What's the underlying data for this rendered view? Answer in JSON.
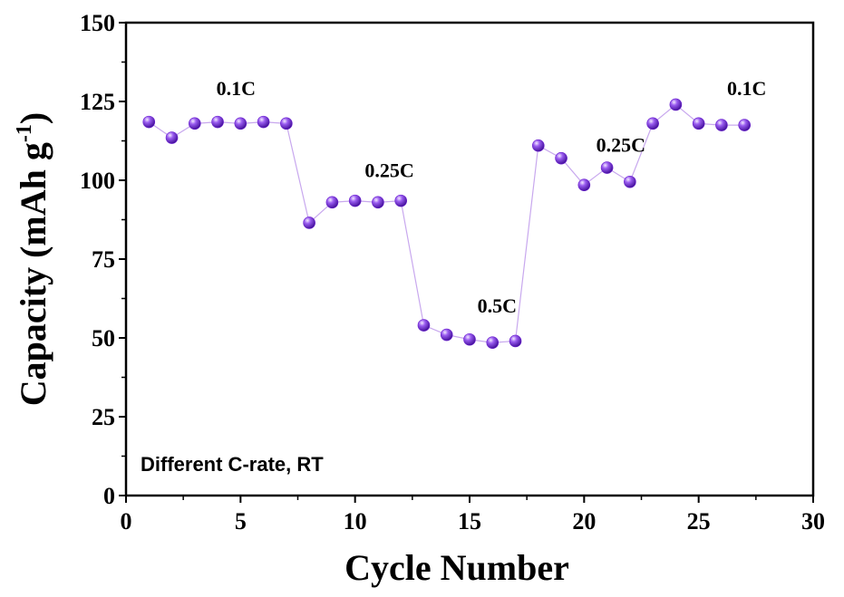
{
  "chart_data": {
    "type": "scatter",
    "xlabel": "Cycle Number",
    "ylabel": "Capacity (mAh g",
    "ylabel_sup": "-1",
    "ylabel_close": ")",
    "xlim": [
      0,
      30
    ],
    "ylim": [
      0,
      150
    ],
    "xticks": [
      0,
      5,
      10,
      15,
      20,
      25,
      30
    ],
    "yticks": [
      0,
      25,
      50,
      75,
      100,
      125,
      150
    ],
    "grid": false,
    "note": "Different C-rate, RT",
    "series": [
      {
        "color": "#6a1fd0",
        "line_color": "#c8a8ee",
        "x": [
          1,
          2,
          3,
          4,
          5,
          6,
          7,
          8,
          9,
          10,
          11,
          12,
          13,
          14,
          15,
          16,
          17,
          18,
          19,
          20,
          21,
          22,
          23,
          24,
          25,
          26,
          27
        ],
        "y": [
          118.5,
          113.5,
          118,
          118.5,
          118,
          118.5,
          118,
          86.5,
          93,
          93.5,
          93,
          93.5,
          54,
          51,
          49.5,
          48.5,
          49,
          111,
          107,
          98.5,
          104,
          99.5,
          118,
          124,
          118,
          117.5,
          117.5
        ]
      }
    ],
    "annotations": [
      {
        "text": "0.1C",
        "x": 4.8,
        "y": 127
      },
      {
        "text": "0.25C",
        "x": 11.5,
        "y": 101
      },
      {
        "text": "0.5C",
        "x": 16.2,
        "y": 58
      },
      {
        "text": "0.25C",
        "x": 21.6,
        "y": 109
      },
      {
        "text": "0.1C",
        "x": 27.1,
        "y": 127
      }
    ]
  }
}
